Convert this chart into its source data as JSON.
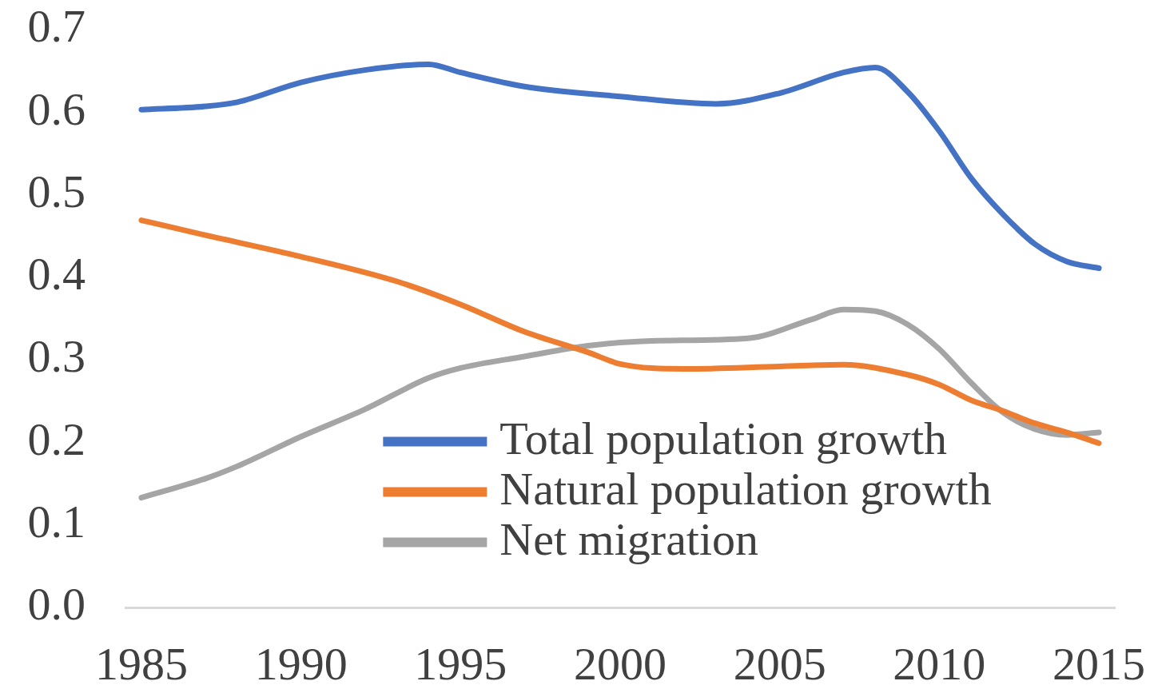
{
  "chart_data": {
    "type": "line",
    "xlim": [
      1984.5,
      2015.5
    ],
    "xticks": [
      1985,
      1990,
      1995,
      2000,
      2005,
      2010,
      2015
    ],
    "ylim": [
      0,
      0.7
    ],
    "yticks": [
      {
        "value": 0,
        "label": "0.0"
      },
      0.1,
      0.2,
      0.3,
      0.4,
      0.5,
      0.6,
      0.7
    ],
    "legend": "bottom",
    "series": [
      {
        "name": "Total population growth",
        "color": "#4472c4",
        "x": [
          1985,
          1987,
          1988,
          1990,
          1992,
          1994,
          1995,
          1997,
          2000,
          2003,
          2005,
          2007,
          2008,
          2009,
          2010,
          2011,
          2012,
          2013,
          2014,
          2015
        ],
        "values": [
          0.603,
          0.607,
          0.612,
          0.636,
          0.651,
          0.658,
          0.648,
          0.631,
          0.619,
          0.61,
          0.623,
          0.648,
          0.654,
          0.625,
          0.577,
          0.52,
          0.476,
          0.44,
          0.419,
          0.411
        ]
      },
      {
        "name": "Natural population growth",
        "color": "#ed7d31",
        "x": [
          1985,
          1987,
          1990,
          1993,
          1995,
          1997,
          1999,
          2000,
          2002,
          2005,
          2007,
          2009,
          2010,
          2011,
          2012,
          2013,
          2014,
          2015
        ],
        "values": [
          0.469,
          0.451,
          0.425,
          0.395,
          0.367,
          0.334,
          0.309,
          0.295,
          0.289,
          0.292,
          0.294,
          0.282,
          0.27,
          0.251,
          0.238,
          0.223,
          0.212,
          0.199
        ]
      },
      {
        "name": "Net migration",
        "color": "#a5a5a5",
        "x": [
          1985,
          1987,
          1988,
          1990,
          1992,
          1994,
          1995,
          1997,
          1999,
          2001,
          2004,
          2006,
          2007,
          2008,
          2009,
          2010,
          2011,
          2012,
          2013,
          2014,
          2015
        ],
        "values": [
          0.133,
          0.156,
          0.171,
          0.207,
          0.24,
          0.278,
          0.29,
          0.304,
          0.317,
          0.323,
          0.326,
          0.349,
          0.361,
          0.359,
          0.343,
          0.313,
          0.272,
          0.236,
          0.216,
          0.209,
          0.212
        ]
      }
    ]
  }
}
